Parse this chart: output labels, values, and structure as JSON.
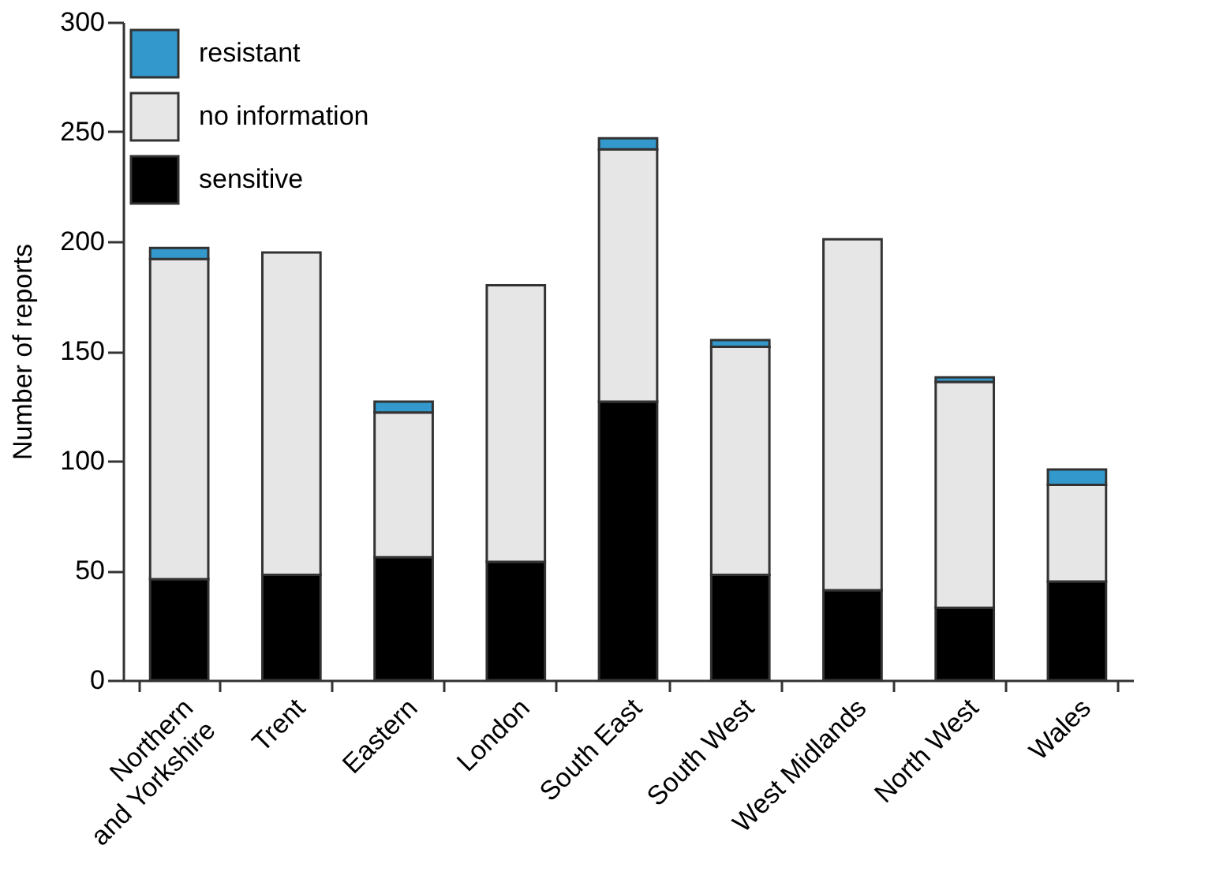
{
  "chart_data": {
    "type": "bar",
    "stacked": true,
    "ylabel": "Number of reports",
    "categories": [
      "Northern\nand Yorkshire",
      "Trent",
      "Eastern",
      "London",
      "South East",
      "South West",
      "West Midlands",
      "North West",
      "Wales"
    ],
    "series": [
      {
        "name": "sensitive",
        "color": "#000000",
        "values": [
          46,
          48,
          56,
          54,
          127,
          48,
          41,
          33,
          45
        ]
      },
      {
        "name": "no information",
        "color": "#e6e6e6",
        "values": [
          146,
          147,
          66,
          126,
          115,
          104,
          160,
          103,
          44
        ]
      },
      {
        "name": "resistant",
        "color": "#3399cc",
        "values": [
          5,
          0,
          5,
          0,
          5,
          3,
          0,
          2,
          7
        ]
      }
    ],
    "ylim": [
      0,
      300
    ],
    "yticks": [
      0,
      50,
      100,
      150,
      200,
      250,
      300
    ],
    "grid": false,
    "legend": "top left"
  }
}
